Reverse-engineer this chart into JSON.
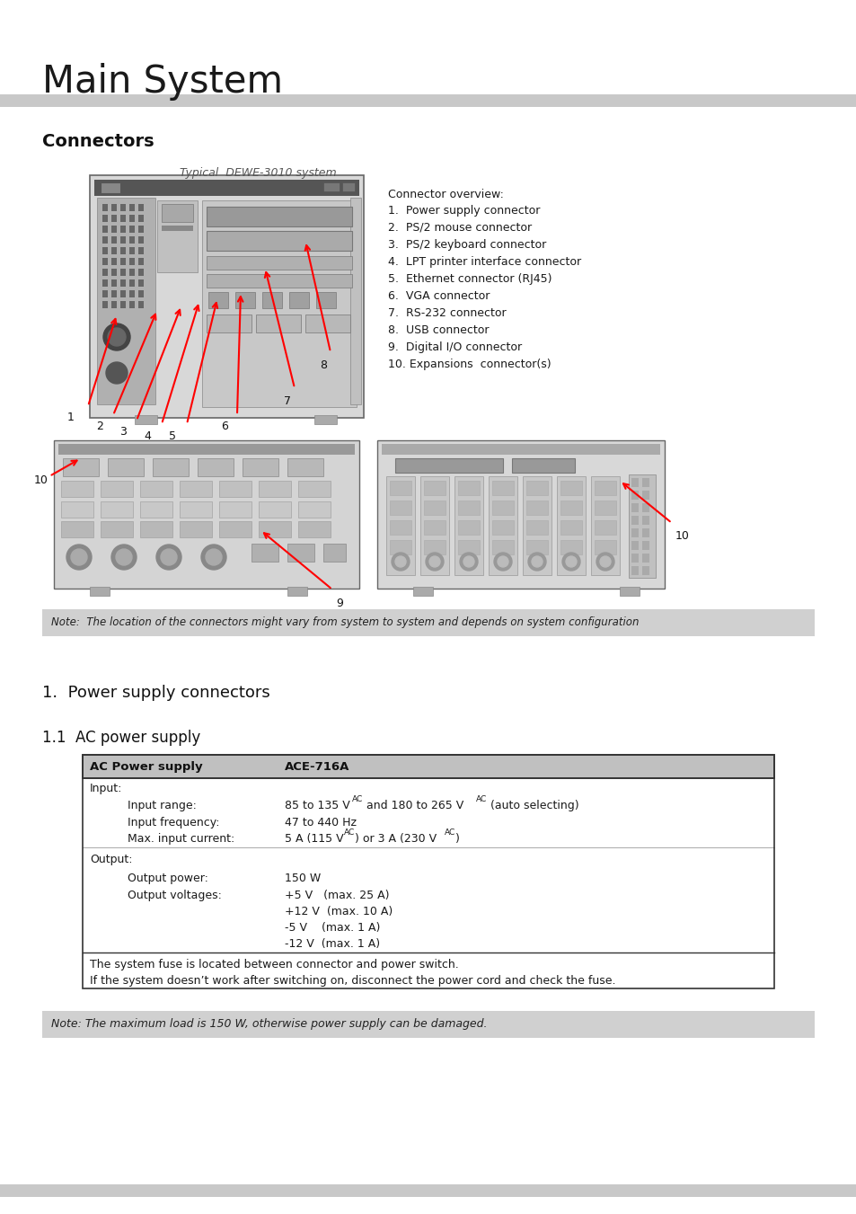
{
  "title": "Main System",
  "section1": "Connectors",
  "italic_caption": "Typical  DEWE-3010 system",
  "connector_overview_title": "Connector overview:",
  "connector_list": [
    "1.  Power supply connector",
    "2.  PS/2 mouse connector",
    "3.  PS/2 keyboard connector",
    "4.  LPT printer interface connector",
    "5.  Ethernet connector (RJ45)",
    "6.  VGA connector",
    "7.  RS-232 connector",
    "8.  USB connector",
    "9.  Digital I/O connector",
    "10. Expansions  connector(s)"
  ],
  "note1": "Note:  The location of the connectors might vary from system to system and depends on system configuration",
  "section2": "1.  Power supply connectors",
  "section3": "1.1  AC power supply",
  "table_header_col1": "AC Power supply",
  "table_header_col2": "ACE-716A",
  "table_footer": [
    "The system fuse is located between connector and power switch.",
    "If the system doesn’t work after switching on, disconnect the power cord and check the fuse."
  ],
  "note2": "Note: The maximum load is 150 W, otherwise power supply can be damaged.",
  "bg_color": "#ffffff",
  "header_bar_color": "#c8c8c8",
  "note_bg_color": "#d0d0d0",
  "table_header_bg": "#c0c0c0",
  "table_sep_color": "#aaaaaa",
  "table_border_color": "#333333"
}
